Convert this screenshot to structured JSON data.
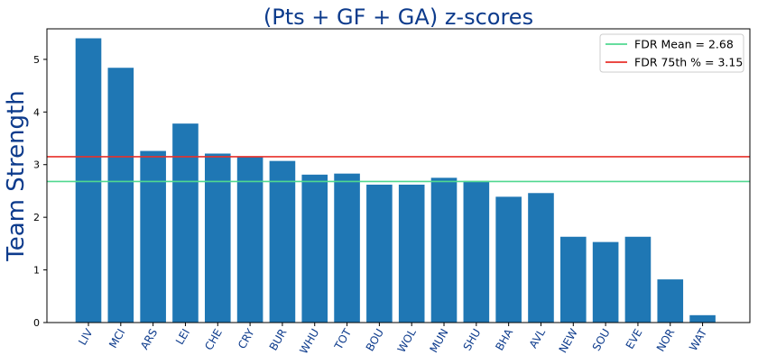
{
  "chart_data": {
    "type": "bar",
    "title": "(Pts + GF + GA) z-scores",
    "xlabel": "",
    "ylabel": "Team Strength",
    "categories": [
      "LIV",
      "MCI",
      "ARS",
      "LEI",
      "CHE",
      "CRY",
      "BUR",
      "WHU",
      "TOT",
      "BOU",
      "WOL",
      "MUN",
      "SHU",
      "BHA",
      "AVL",
      "NEW",
      "SOU",
      "EVE",
      "NOR",
      "WAT"
    ],
    "values": [
      5.4,
      4.84,
      3.26,
      3.78,
      3.21,
      3.15,
      3.07,
      2.81,
      2.83,
      2.62,
      2.62,
      2.75,
      2.69,
      2.39,
      2.46,
      1.63,
      1.53,
      1.63,
      0.82,
      0.14
    ],
    "ylim": [
      0,
      5.58
    ],
    "yticks": [
      0,
      1,
      2,
      3,
      4,
      5
    ],
    "ytick_labels": [
      "0",
      "1",
      "2",
      "3",
      "4",
      "5"
    ],
    "grid": false,
    "legend_placement": "top-right",
    "bar_color": "#1f77b4",
    "title_color": "#0d3b8c",
    "tick_label_color": "#0d3b8c",
    "reference_lines": [
      {
        "label": "FDR Mean = 2.68",
        "value": 2.68,
        "color": "#50d890"
      },
      {
        "label": "FDR 75th % = 3.15",
        "value": 3.15,
        "color": "#e8302a"
      }
    ]
  }
}
